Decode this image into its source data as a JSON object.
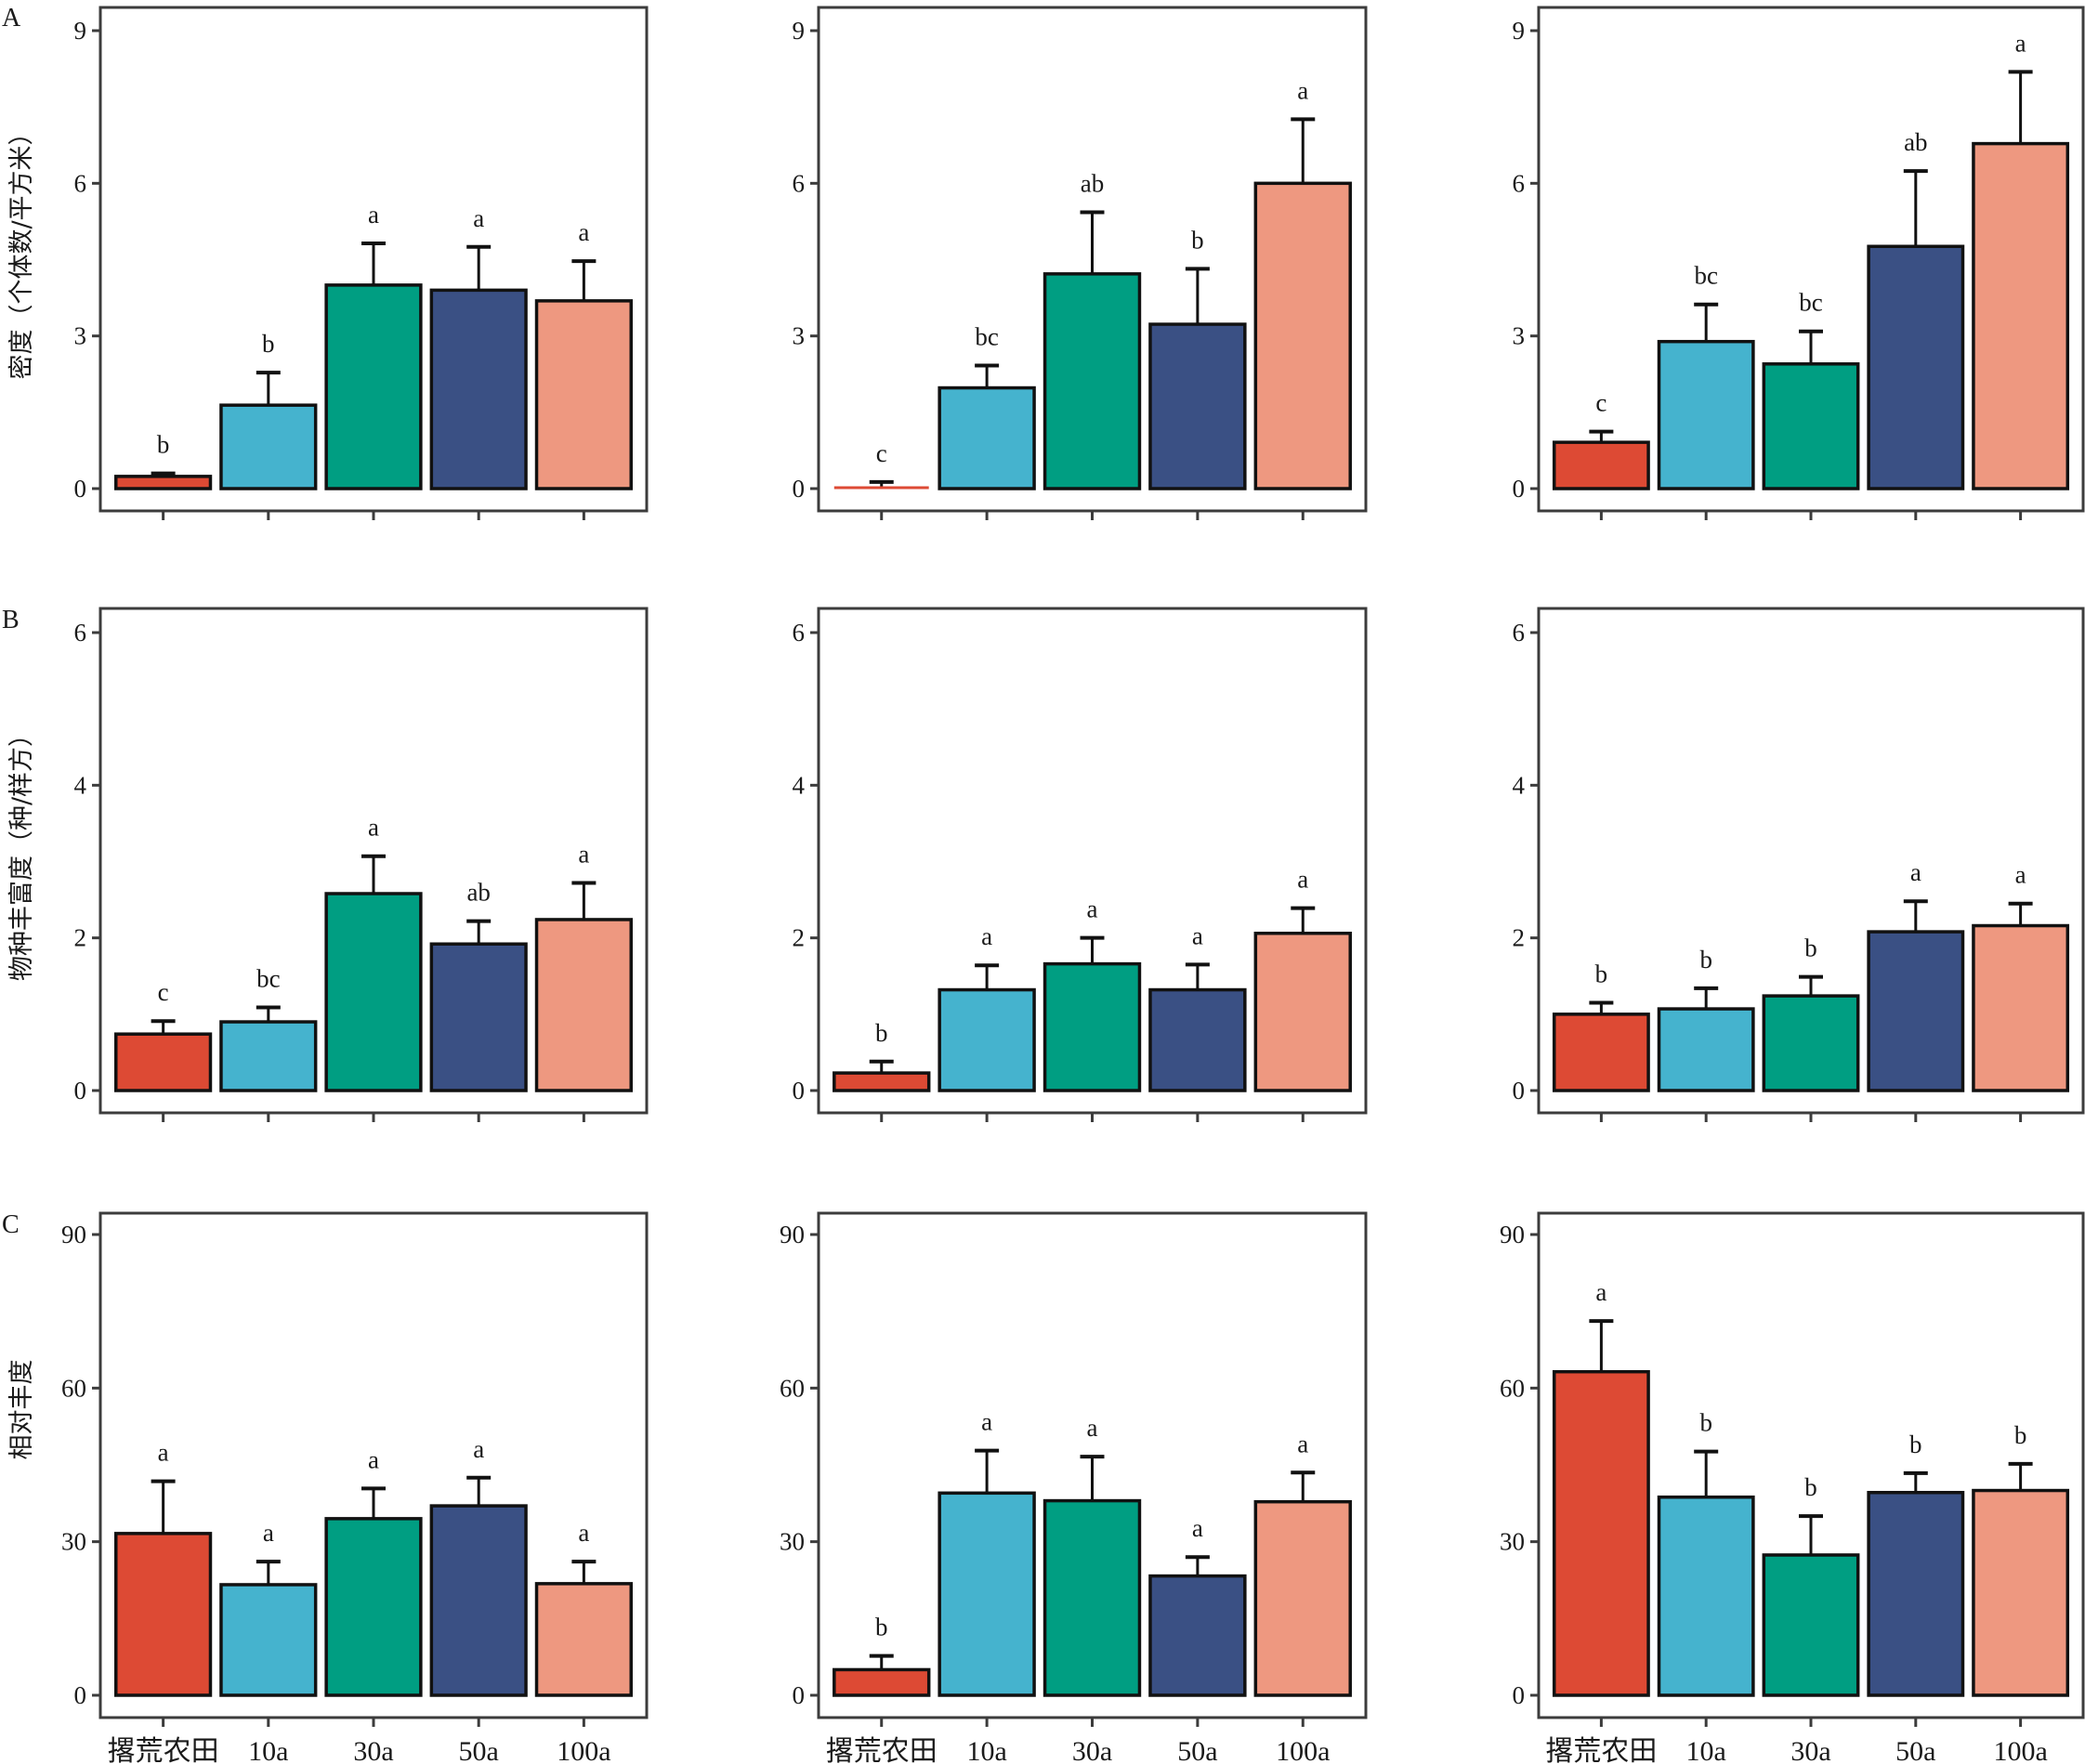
{
  "figure": {
    "panel_letters": [
      "A",
      "B",
      "C"
    ],
    "categories": [
      "撂荒农田",
      "10a",
      "30a",
      "50a",
      "100a"
    ],
    "colors": [
      "#DD4A34",
      "#45B3CE",
      "#009E82",
      "#3A5084",
      "#EE9880"
    ]
  },
  "chart_data": [
    {
      "type": "bar",
      "row": "A",
      "column": 1,
      "ylabel": "密度（个体数/平方米）",
      "categories": [
        "撂荒农田",
        "10a",
        "30a",
        "50a",
        "100a"
      ],
      "values": [
        0.24,
        1.64,
        4.0,
        3.9,
        3.69
      ],
      "error_upper": [
        0.3,
        2.28,
        4.82,
        4.75,
        4.47
      ],
      "significance": [
        "b",
        "b",
        "a",
        "a",
        "a"
      ],
      "yticks": [
        0,
        3,
        6,
        9
      ],
      "ylim": [
        -0.4,
        9.3
      ],
      "grid": false
    },
    {
      "type": "bar",
      "row": "A",
      "column": 2,
      "ylabel": "",
      "categories": [
        "撂荒农田",
        "10a",
        "30a",
        "50a",
        "100a"
      ],
      "values": [
        0.02,
        1.98,
        4.22,
        3.23,
        6.0
      ],
      "error_upper": [
        0.13,
        2.42,
        5.43,
        4.32,
        7.26
      ],
      "significance": [
        "c",
        "bc",
        "ab",
        "b",
        "a"
      ],
      "yticks": [
        0,
        3,
        6,
        9
      ],
      "ylim": [
        -0.4,
        9.3
      ],
      "grid": false
    },
    {
      "type": "bar",
      "row": "A",
      "column": 3,
      "ylabel": "",
      "categories": [
        "撂荒农田",
        "10a",
        "30a",
        "50a",
        "100a"
      ],
      "values": [
        0.91,
        2.89,
        2.45,
        4.76,
        6.78
      ],
      "error_upper": [
        1.12,
        3.62,
        3.09,
        6.24,
        8.19
      ],
      "significance": [
        "c",
        "bc",
        "bc",
        "ab",
        "a"
      ],
      "yticks": [
        0,
        3,
        6,
        9
      ],
      "ylim": [
        -0.4,
        9.3
      ],
      "grid": false
    },
    {
      "type": "bar",
      "row": "B",
      "column": 1,
      "ylabel": "物种丰富度（种/样方）",
      "categories": [
        "撂荒农田",
        "10a",
        "30a",
        "50a",
        "100a"
      ],
      "values": [
        0.74,
        0.9,
        2.58,
        1.92,
        2.24
      ],
      "error_upper": [
        0.91,
        1.09,
        3.07,
        2.22,
        2.72
      ],
      "significance": [
        "c",
        "bc",
        "a",
        "ab",
        "a"
      ],
      "yticks": [
        0,
        2,
        4,
        6
      ],
      "ylim": [
        -0.3,
        6.2
      ],
      "grid": false
    },
    {
      "type": "bar",
      "row": "B",
      "column": 2,
      "ylabel": "",
      "categories": [
        "撂荒农田",
        "10a",
        "30a",
        "50a",
        "100a"
      ],
      "values": [
        0.23,
        1.32,
        1.66,
        1.32,
        2.06
      ],
      "error_upper": [
        0.38,
        1.64,
        2.0,
        1.65,
        2.39
      ],
      "significance": [
        "b",
        "a",
        "a",
        "a",
        "a"
      ],
      "yticks": [
        0,
        2,
        4,
        6
      ],
      "ylim": [
        -0.3,
        6.2
      ],
      "grid": false
    },
    {
      "type": "bar",
      "row": "B",
      "column": 3,
      "ylabel": "",
      "categories": [
        "撂荒农田",
        "10a",
        "30a",
        "50a",
        "100a"
      ],
      "values": [
        1.0,
        1.07,
        1.24,
        2.08,
        2.16
      ],
      "error_upper": [
        1.15,
        1.34,
        1.49,
        2.48,
        2.45
      ],
      "significance": [
        "b",
        "b",
        "b",
        "a",
        "a"
      ],
      "yticks": [
        0,
        2,
        4,
        6
      ],
      "ylim": [
        -0.3,
        6.2
      ],
      "grid": false
    },
    {
      "type": "bar",
      "row": "C",
      "column": 1,
      "ylabel": "相对丰度",
      "categories": [
        "撂荒农田",
        "10a",
        "30a",
        "50a",
        "100a"
      ],
      "values": [
        31.6,
        21.6,
        34.5,
        37.0,
        21.8
      ],
      "error_upper": [
        41.8,
        26.1,
        40.4,
        42.5,
        26.1
      ],
      "significance": [
        "a",
        "a",
        "a",
        "a",
        "a"
      ],
      "yticks": [
        0,
        30,
        60,
        90
      ],
      "ylim": [
        -4.4,
        94.5
      ],
      "grid": false
    },
    {
      "type": "bar",
      "row": "C",
      "column": 2,
      "ylabel": "",
      "categories": [
        "撂荒农田",
        "10a",
        "30a",
        "50a",
        "100a"
      ],
      "values": [
        5.0,
        39.5,
        38.0,
        23.3,
        37.8
      ],
      "error_upper": [
        7.7,
        47.8,
        46.6,
        27.0,
        43.5
      ],
      "significance": [
        "b",
        "a",
        "a",
        "a",
        "a"
      ],
      "yticks": [
        0,
        30,
        60,
        90
      ],
      "ylim": [
        -4.4,
        94.5
      ],
      "grid": false
    },
    {
      "type": "bar",
      "row": "C",
      "column": 3,
      "ylabel": "",
      "categories": [
        "撂荒农田",
        "10a",
        "30a",
        "50a",
        "100a"
      ],
      "values": [
        63.2,
        38.7,
        27.4,
        39.6,
        40.0
      ],
      "error_upper": [
        73.1,
        47.6,
        35.0,
        43.4,
        45.2
      ],
      "significance": [
        "a",
        "b",
        "b",
        "b",
        "b"
      ],
      "yticks": [
        0,
        30,
        60,
        90
      ],
      "ylim": [
        -4.4,
        94.5
      ],
      "grid": false
    }
  ]
}
